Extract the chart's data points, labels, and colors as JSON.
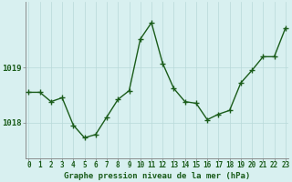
{
  "x": [
    0,
    1,
    2,
    3,
    4,
    5,
    6,
    7,
    8,
    9,
    10,
    11,
    12,
    13,
    14,
    15,
    16,
    17,
    18,
    19,
    20,
    21,
    22,
    23
  ],
  "y": [
    1018.55,
    1018.55,
    1018.38,
    1018.45,
    1017.95,
    1017.72,
    1017.78,
    1018.1,
    1018.42,
    1018.58,
    1019.52,
    1019.82,
    1019.08,
    1018.62,
    1018.38,
    1018.35,
    1018.05,
    1018.15,
    1018.22,
    1018.72,
    1018.95,
    1019.2,
    1019.2,
    1019.72
  ],
  "line_color": "#1a5c1a",
  "marker_color": "#1a5c1a",
  "bg_color": "#d8f0f0",
  "grid_color_v": "#b8d8d8",
  "grid_color_h": "#b8d8d8",
  "axis_color": "#808080",
  "xlabel": "Graphe pression niveau de la mer (hPa)",
  "ytick_labels": [
    "1019",
    "1018"
  ],
  "ytick_vals": [
    1019,
    1018
  ],
  "ylim": [
    1017.35,
    1020.2
  ],
  "xlim": [
    -0.3,
    23.3
  ],
  "xlabel_color": "#1a5c1a",
  "tick_color": "#1a5c1a",
  "linewidth": 1.0,
  "markersize": 2.5,
  "xlabel_fontsize": 6.5,
  "tick_fontsize": 5.5,
  "ytick_fontsize": 6.5
}
